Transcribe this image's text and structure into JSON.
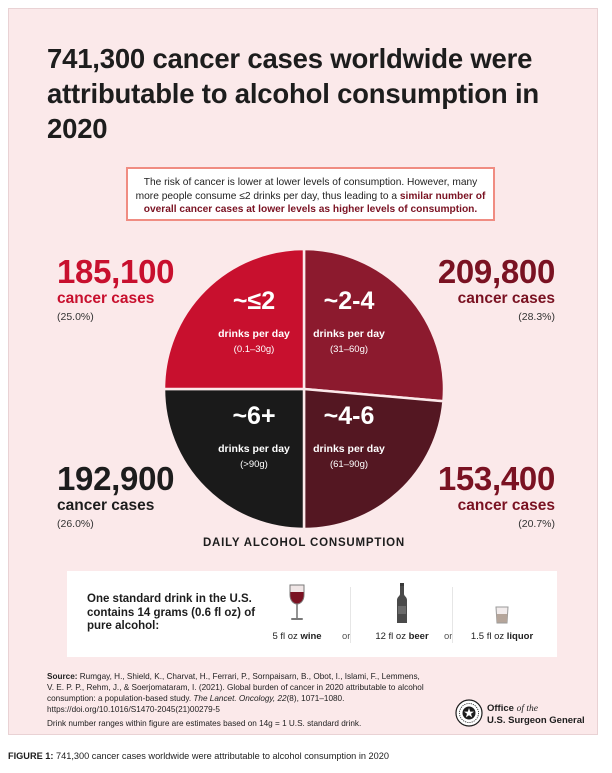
{
  "title": "741,300 cancer cases worldwide were attributable to alcohol consumption in 2020",
  "callout": {
    "text_1": "The risk of cancer is lower at lower levels of consumption. However, many more people consume ≤2 drinks per day, thus leading to a ",
    "text_bold": "similar number of overall cancer cases at lower levels as higher levels of consumption."
  },
  "chart_data": {
    "type": "pie",
    "title": "",
    "xlabel": "DAILY ALCOHOL CONSUMPTION",
    "slices": [
      {
        "label": "~≤2",
        "sublabel": "drinks per day",
        "range": "(0.1–30g)",
        "cases": "185,100",
        "cases_label": "cancer cases",
        "percent_label": "(25.0%)",
        "value": 25.0,
        "color": "#c8102e"
      },
      {
        "label": "~2-4",
        "sublabel": "drinks per day",
        "range": "(31–60g)",
        "cases": "209,800",
        "cases_label": "cancer cases",
        "percent_label": "(28.3%)",
        "value": 28.3,
        "color": "#8c1a2e"
      },
      {
        "label": "~4-6",
        "sublabel": "drinks per day",
        "range": "(61–90g)",
        "cases": "153,400",
        "cases_label": "cancer cases",
        "percent_label": "(20.7%)",
        "value": 20.7,
        "color": "#541722"
      },
      {
        "label": "~6+",
        "sublabel": "drinks per day",
        "range": "(>90g)",
        "cases": "192,900",
        "cases_label": "cancer cases",
        "percent_label": "(26.0%)",
        "value": 26.0,
        "color": "#1a1a1a"
      }
    ]
  },
  "drink_box": {
    "text": "One standard drink in the U.S. contains 14 grams (0.6 fl oz) of pure alcohol:",
    "items": [
      {
        "amount": "5 fl oz ",
        "kind": "wine",
        "icon": "wine-glass-icon"
      },
      {
        "amount": "12 fl oz ",
        "kind": "beer",
        "icon": "beer-bottle-icon"
      },
      {
        "amount": "1.5 fl oz ",
        "kind": "liquor",
        "icon": "shot-glass-icon"
      }
    ],
    "or_label": "or"
  },
  "source": {
    "label": "Source:",
    "text_1": " Rumgay, H., Shield, K., Charvat, H., Ferrari, P., Sornpaisarn, B., Obot, I., Islami, F., Lemmens, V. E. P. P., Rehm, J., & Soerjomataram, I. (2021). Global burden of cancer in 2020 attributable to alcohol consumption: a population-based study. ",
    "journal": "The Lancet. Oncology, 22",
    "text_2": "(8), 1071–1080. https://doi.org/10.1016/S1470-2045(21)00279-5",
    "note": "Drink number ranges within figure are estimates based on 14g = 1 U.S. standard drink."
  },
  "logo": {
    "line_1_a": "Office ",
    "line_1_b": "of the",
    "line_2": "U.S. Surgeon General"
  },
  "caption": {
    "label": "FIGURE 1:",
    "text": " 741,300 cancer cases worldwide were attributable to alcohol consumption in 2020"
  }
}
